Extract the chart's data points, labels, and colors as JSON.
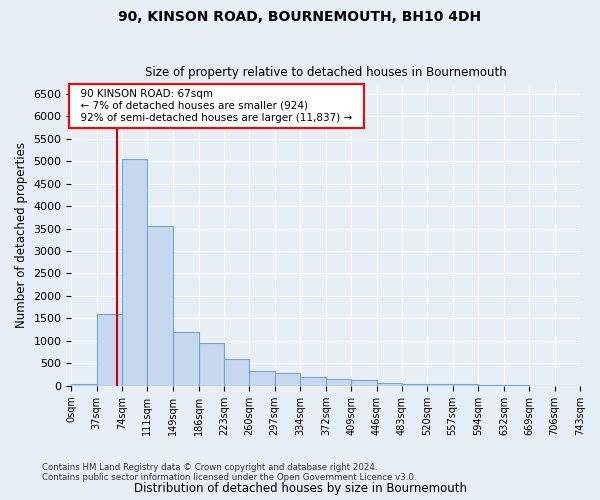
{
  "title": "90, KINSON ROAD, BOURNEMOUTH, BH10 4DH",
  "subtitle": "Size of property relative to detached houses in Bournemouth",
  "xlabel": "Distribution of detached houses by size in Bournemouth",
  "ylabel": "Number of detached properties",
  "bar_color": "#c5d8ee",
  "bar_edge_color": "#6aaad4",
  "background_color": "#e8eef6",
  "grid_color": "#ffffff",
  "annotation_line_color": "#cc0000",
  "annotation_property": "90 KINSON ROAD: 67sqm",
  "annotation_line1": "← 7% of detached houses are smaller (924)",
  "annotation_line2": "92% of semi-detached houses are larger (11,837) →",
  "property_size": 67,
  "footer_line1": "Contains HM Land Registry data © Crown copyright and database right 2024.",
  "footer_line2": "Contains public sector information licensed under the Open Government Licence v3.0.",
  "bin_edges": [
    0,
    37,
    74,
    111,
    149,
    186,
    223,
    260,
    297,
    334,
    372,
    409,
    446,
    483,
    520,
    557,
    594,
    632,
    669,
    706,
    743
  ],
  "bin_counts": [
    30,
    1600,
    5050,
    3560,
    1200,
    950,
    600,
    340,
    280,
    200,
    160,
    130,
    60,
    50,
    40,
    30,
    20,
    10,
    0,
    0
  ],
  "ylim": [
    0,
    6700
  ],
  "yticks": [
    0,
    500,
    1000,
    1500,
    2000,
    2500,
    3000,
    3500,
    4000,
    4500,
    5000,
    5500,
    6000,
    6500
  ]
}
